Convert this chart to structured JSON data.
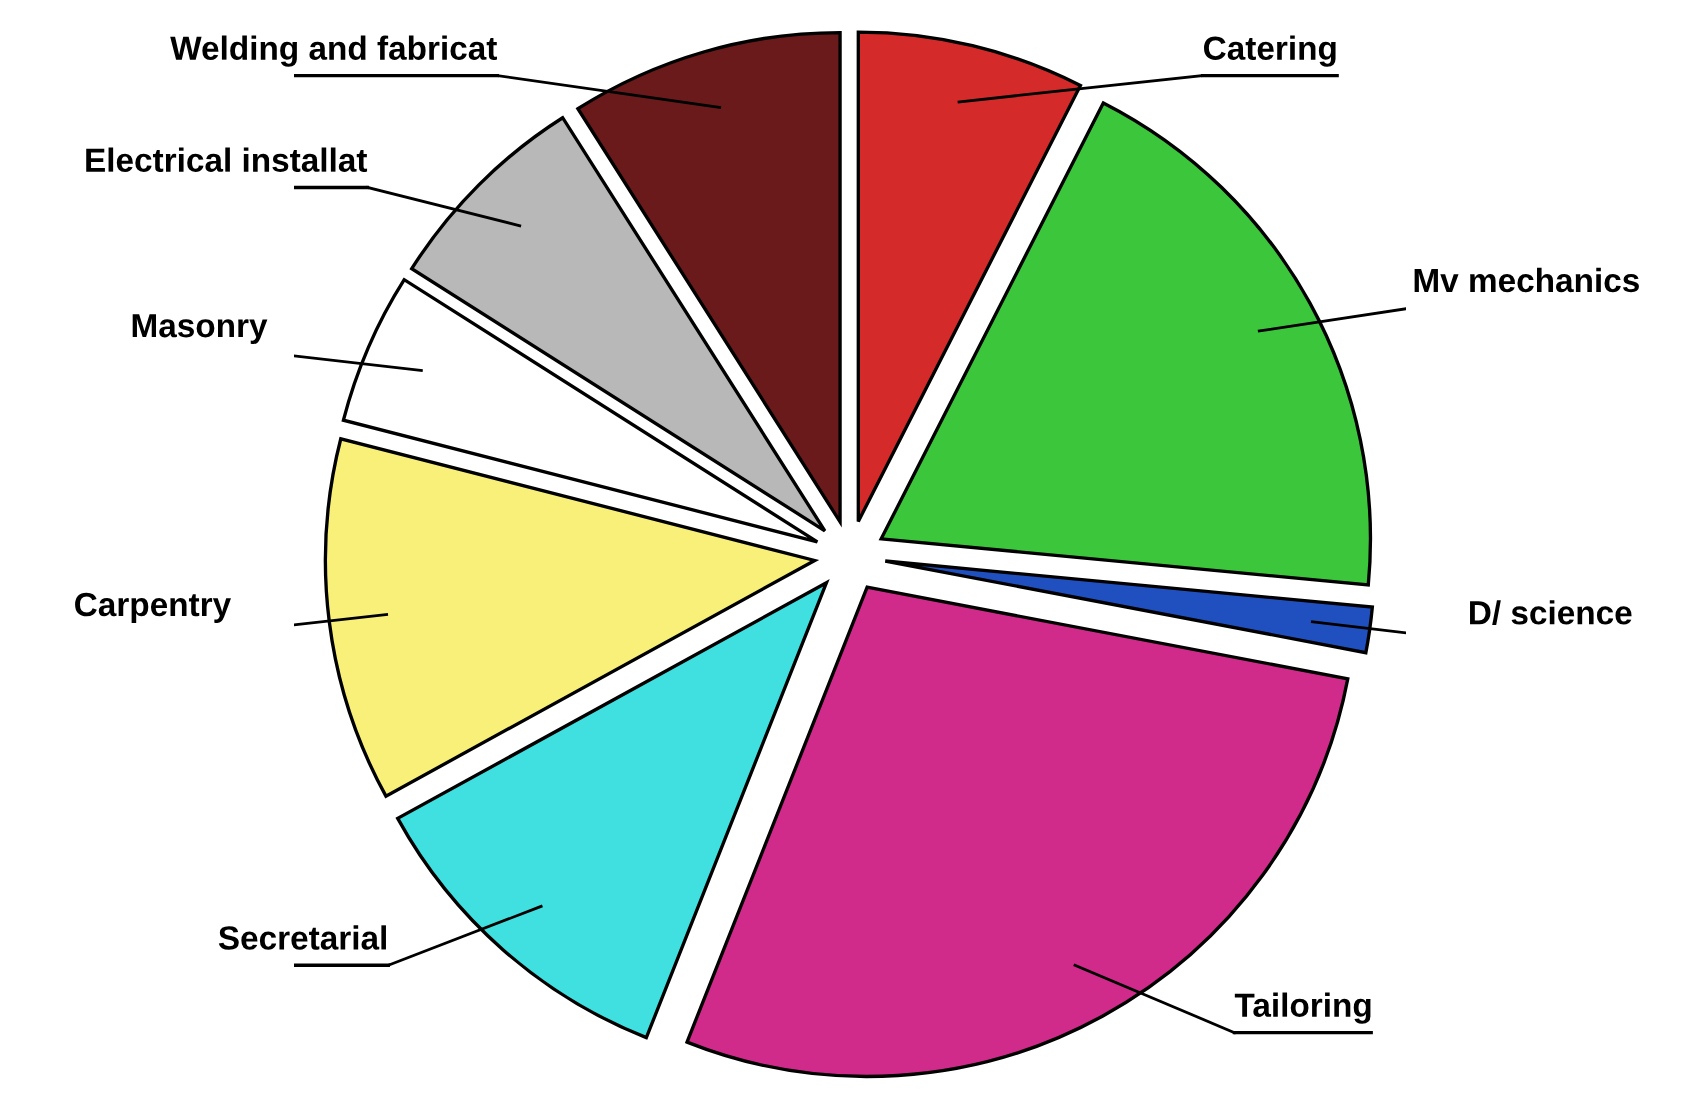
{
  "chart_data": {
    "type": "pie",
    "categories": [
      "Catering",
      "Mv mechanics",
      "D/ science",
      "Tailoring",
      "Secretarial",
      "Carpentry",
      "Masonry",
      "Electrical installat",
      "Welding and fabricat"
    ],
    "values": [
      7.5,
      19,
      1.5,
      28,
      11,
      12,
      5,
      7,
      9
    ],
    "colors": [
      "#d42a2a",
      "#3cc63c",
      "#2050c0",
      "#d02a8a",
      "#40e0e0",
      "#f8f078",
      "#ffffff",
      "#b8b8b8",
      "#6a1a1a"
    ]
  }
}
